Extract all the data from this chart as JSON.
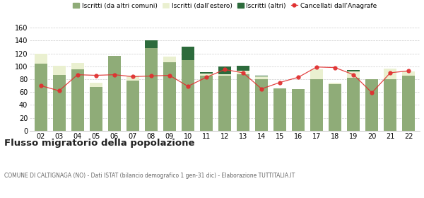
{
  "years": [
    "02",
    "03",
    "04",
    "05",
    "06",
    "07",
    "08",
    "09",
    "10",
    "11",
    "12",
    "13",
    "14",
    "15",
    "16",
    "17",
    "18",
    "19",
    "20",
    "21",
    "22"
  ],
  "iscritti_comuni": [
    104,
    87,
    95,
    68,
    116,
    78,
    128,
    106,
    110,
    86,
    85,
    88,
    80,
    66,
    65,
    80,
    72,
    82,
    80,
    80,
    86
  ],
  "iscritti_estero": [
    16,
    14,
    10,
    6,
    0,
    8,
    0,
    9,
    0,
    3,
    3,
    5,
    4,
    0,
    0,
    15,
    2,
    10,
    0,
    17,
    6
  ],
  "iscritti_altri": [
    0,
    0,
    0,
    0,
    0,
    0,
    12,
    0,
    20,
    2,
    12,
    8,
    2,
    0,
    0,
    0,
    0,
    2,
    0,
    0,
    0
  ],
  "cancellati": [
    70,
    62,
    87,
    86,
    87,
    84,
    85,
    86,
    69,
    83,
    95,
    90,
    65,
    75,
    83,
    99,
    98,
    87,
    59,
    90,
    93
  ],
  "color_comuni": "#8fac78",
  "color_estero": "#eaf0d0",
  "color_altri": "#2d6b3c",
  "color_cancellati": "#e03030",
  "ylim": [
    0,
    160
  ],
  "yticks": [
    0,
    20,
    40,
    60,
    80,
    100,
    120,
    140,
    160
  ],
  "title": "Flusso migratorio della popolazione",
  "subtitle": "COMUNE DI CALTIGNAGA (NO) - Dati ISTAT (bilancio demografico 1 gen-31 dic) - Elaborazione TUTTITALIA.IT",
  "legend_labels": [
    "Iscritti (da altri comuni)",
    "Iscritti (dall'estero)",
    "Iscritti (altri)",
    "Cancellati dall'Anagrafe"
  ],
  "bg_color": "#ffffff",
  "grid_color": "#cccccc"
}
